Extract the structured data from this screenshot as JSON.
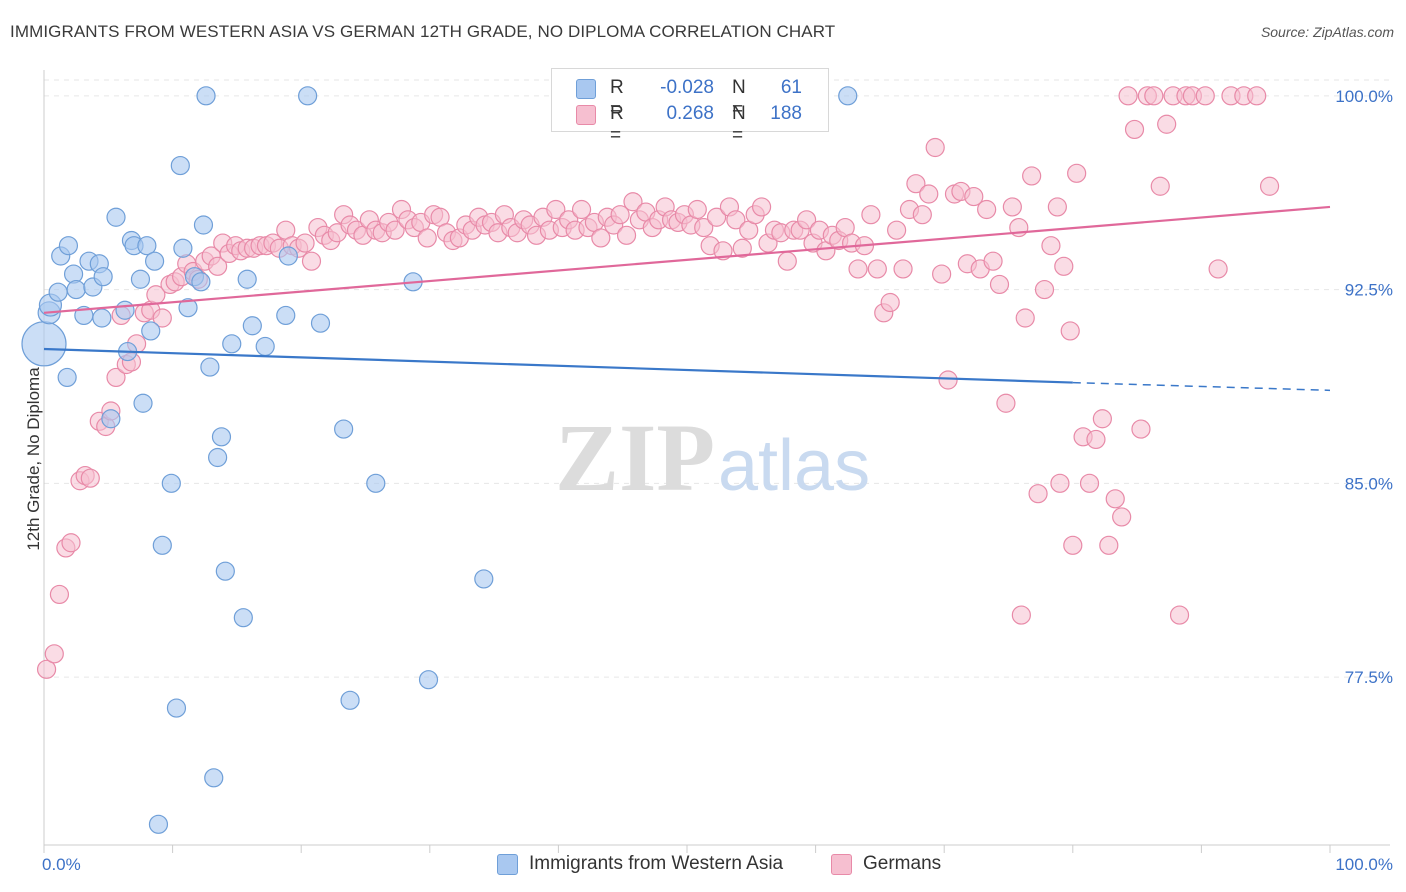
{
  "title": "IMMIGRANTS FROM WESTERN ASIA VS GERMAN 12TH GRADE, NO DIPLOMA CORRELATION CHART",
  "source": "Source: ZipAtlas.com",
  "watermark": {
    "zip": "ZIP",
    "atlas": "atlas"
  },
  "legend": {
    "rows": [
      {
        "r_label": "R =",
        "r_value": "-0.028",
        "n_label": "N =",
        "n_value": "61"
      },
      {
        "r_label": "R =",
        "r_value": "0.268",
        "n_label": "N =",
        "n_value": "188"
      }
    ]
  },
  "bottom_legend": [
    "Immigrants from Western Asia",
    "Germans"
  ],
  "colors": {
    "blue_fill": "#a9c8f0",
    "blue_stroke": "#6f9fd8",
    "blue_line": "#3a78c9",
    "pink_fill": "#f6bfd0",
    "pink_stroke": "#e88aa8",
    "pink_line": "#e0689a",
    "axis_text_blue": "#3d72c7",
    "grid": "#e6e6e6"
  },
  "chart_data": {
    "type": "scatter",
    "title": "IMMIGRANTS FROM WESTERN ASIA VS GERMAN 12TH GRADE, NO DIPLOMA CORRELATION CHART",
    "xlabel": "",
    "ylabel": "12th Grade, No Diploma",
    "xlim": [
      0,
      100
    ],
    "ylim": [
      71.0,
      101.0
    ],
    "x_ticks": [
      0,
      100
    ],
    "x_tick_labels": [
      "0.0%",
      "100.0%"
    ],
    "y_ticks": [
      77.5,
      85.0,
      92.5,
      100.0
    ],
    "y_tick_labels": [
      "77.5%",
      "85.0%",
      "92.5%",
      "100.0%"
    ],
    "grid": true,
    "legend_position": "top-center",
    "series": [
      {
        "name": "Immigrants from Western Asia",
        "color": "#a9c8f0",
        "r": -0.028,
        "n": 61,
        "trend": {
          "x": [
            0,
            80
          ],
          "y": [
            90.2,
            88.9
          ],
          "dashed_to": [
            100,
            88.6
          ]
        },
        "points": [
          [
            0.0,
            90.4
          ],
          [
            0.4,
            91.6
          ],
          [
            0.5,
            91.9
          ],
          [
            1.1,
            92.4
          ],
          [
            1.3,
            93.8
          ],
          [
            1.9,
            94.2
          ],
          [
            1.8,
            89.1
          ],
          [
            2.3,
            93.1
          ],
          [
            2.5,
            92.5
          ],
          [
            3.1,
            91.5
          ],
          [
            3.5,
            93.6
          ],
          [
            3.8,
            92.6
          ],
          [
            4.3,
            93.5
          ],
          [
            4.6,
            93.0
          ],
          [
            4.5,
            91.4
          ],
          [
            5.2,
            87.5
          ],
          [
            5.6,
            95.3
          ],
          [
            6.3,
            91.7
          ],
          [
            6.5,
            90.1
          ],
          [
            6.8,
            94.4
          ],
          [
            7.0,
            94.2
          ],
          [
            7.5,
            92.9
          ],
          [
            7.7,
            88.1
          ],
          [
            8.0,
            94.2
          ],
          [
            8.3,
            90.9
          ],
          [
            8.6,
            93.6
          ],
          [
            8.9,
            71.8
          ],
          [
            9.2,
            82.6
          ],
          [
            9.9,
            85.0
          ],
          [
            10.3,
            76.3
          ],
          [
            10.6,
            97.3
          ],
          [
            10.8,
            94.1
          ],
          [
            11.2,
            91.8
          ],
          [
            11.7,
            93.0
          ],
          [
            12.2,
            92.8
          ],
          [
            12.4,
            95.0
          ],
          [
            12.6,
            100.0
          ],
          [
            12.9,
            89.5
          ],
          [
            13.2,
            73.6
          ],
          [
            13.5,
            86.0
          ],
          [
            13.8,
            86.8
          ],
          [
            14.1,
            81.6
          ],
          [
            14.6,
            90.4
          ],
          [
            15.5,
            79.8
          ],
          [
            15.8,
            92.9
          ],
          [
            16.2,
            91.1
          ],
          [
            17.2,
            90.3
          ],
          [
            18.8,
            91.5
          ],
          [
            19.0,
            93.8
          ],
          [
            20.5,
            100.0
          ],
          [
            21.5,
            91.2
          ],
          [
            23.3,
            87.1
          ],
          [
            23.8,
            76.6
          ],
          [
            25.8,
            85.0
          ],
          [
            28.7,
            92.8
          ],
          [
            29.9,
            77.4
          ],
          [
            34.2,
            81.3
          ],
          [
            62.5,
            100.0
          ]
        ]
      },
      {
        "name": "Germans",
        "color": "#f6bfd0",
        "r": 0.268,
        "n": 188,
        "trend": {
          "x": [
            0,
            100
          ],
          "y": [
            91.6,
            95.7
          ]
        },
        "points": [
          [
            0.2,
            77.8
          ],
          [
            0.8,
            78.4
          ],
          [
            1.2,
            80.7
          ],
          [
            1.7,
            82.5
          ],
          [
            2.1,
            82.7
          ],
          [
            2.8,
            85.1
          ],
          [
            3.2,
            85.3
          ],
          [
            3.6,
            85.2
          ],
          [
            4.3,
            87.4
          ],
          [
            4.8,
            87.2
          ],
          [
            5.2,
            87.8
          ],
          [
            5.6,
            89.1
          ],
          [
            6.0,
            91.5
          ],
          [
            6.4,
            89.6
          ],
          [
            6.8,
            89.7
          ],
          [
            7.2,
            90.4
          ],
          [
            7.8,
            91.6
          ],
          [
            8.3,
            91.7
          ],
          [
            8.7,
            92.3
          ],
          [
            9.2,
            91.4
          ],
          [
            9.8,
            92.7
          ],
          [
            10.2,
            92.8
          ],
          [
            10.7,
            93.0
          ],
          [
            11.1,
            93.5
          ],
          [
            11.6,
            93.2
          ],
          [
            12.0,
            92.9
          ],
          [
            12.5,
            93.6
          ],
          [
            13.0,
            93.8
          ],
          [
            13.5,
            93.4
          ],
          [
            13.9,
            94.3
          ],
          [
            14.4,
            93.9
          ],
          [
            14.9,
            94.2
          ],
          [
            15.3,
            94.0
          ],
          [
            15.8,
            94.1
          ],
          [
            16.3,
            94.1
          ],
          [
            16.8,
            94.2
          ],
          [
            17.3,
            94.2
          ],
          [
            17.8,
            94.3
          ],
          [
            18.3,
            94.1
          ],
          [
            18.8,
            94.8
          ],
          [
            19.3,
            94.2
          ],
          [
            19.8,
            94.1
          ],
          [
            20.3,
            94.3
          ],
          [
            20.8,
            93.6
          ],
          [
            21.3,
            94.9
          ],
          [
            21.8,
            94.6
          ],
          [
            22.3,
            94.4
          ],
          [
            22.8,
            94.7
          ],
          [
            23.3,
            95.4
          ],
          [
            23.8,
            95.0
          ],
          [
            24.3,
            94.8
          ],
          [
            24.8,
            94.6
          ],
          [
            25.3,
            95.2
          ],
          [
            25.8,
            94.8
          ],
          [
            26.3,
            94.7
          ],
          [
            26.8,
            95.1
          ],
          [
            27.3,
            94.8
          ],
          [
            27.8,
            95.6
          ],
          [
            28.3,
            95.2
          ],
          [
            28.8,
            94.9
          ],
          [
            29.3,
            95.1
          ],
          [
            29.8,
            94.5
          ],
          [
            30.3,
            95.4
          ],
          [
            30.8,
            95.3
          ],
          [
            31.3,
            94.7
          ],
          [
            31.8,
            94.4
          ],
          [
            32.3,
            94.5
          ],
          [
            32.8,
            95.0
          ],
          [
            33.3,
            94.8
          ],
          [
            33.8,
            95.3
          ],
          [
            34.3,
            95.0
          ],
          [
            34.8,
            95.1
          ],
          [
            35.3,
            94.7
          ],
          [
            35.8,
            95.4
          ],
          [
            36.3,
            94.9
          ],
          [
            36.8,
            94.7
          ],
          [
            37.3,
            95.2
          ],
          [
            37.8,
            95.0
          ],
          [
            38.3,
            94.6
          ],
          [
            38.8,
            95.3
          ],
          [
            39.3,
            94.8
          ],
          [
            39.8,
            95.6
          ],
          [
            40.3,
            94.9
          ],
          [
            40.8,
            95.2
          ],
          [
            41.3,
            94.8
          ],
          [
            41.8,
            95.6
          ],
          [
            42.3,
            94.9
          ],
          [
            42.8,
            95.1
          ],
          [
            43.3,
            94.5
          ],
          [
            43.8,
            95.3
          ],
          [
            44.3,
            95.0
          ],
          [
            44.8,
            95.4
          ],
          [
            45.3,
            94.6
          ],
          [
            45.8,
            95.9
          ],
          [
            46.3,
            95.2
          ],
          [
            46.8,
            95.5
          ],
          [
            47.3,
            94.9
          ],
          [
            47.8,
            95.2
          ],
          [
            48.3,
            95.7
          ],
          [
            48.8,
            95.2
          ],
          [
            49.3,
            95.1
          ],
          [
            49.8,
            95.4
          ],
          [
            50.3,
            95.0
          ],
          [
            50.8,
            95.6
          ],
          [
            51.3,
            94.9
          ],
          [
            51.8,
            94.2
          ],
          [
            52.3,
            95.3
          ],
          [
            52.8,
            94.0
          ],
          [
            53.3,
            95.7
          ],
          [
            53.8,
            95.2
          ],
          [
            54.3,
            94.1
          ],
          [
            54.8,
            94.8
          ],
          [
            55.3,
            95.4
          ],
          [
            55.8,
            95.7
          ],
          [
            56.3,
            94.3
          ],
          [
            56.8,
            94.8
          ],
          [
            57.3,
            94.7
          ],
          [
            57.8,
            93.6
          ],
          [
            58.3,
            94.8
          ],
          [
            58.8,
            94.8
          ],
          [
            59.3,
            95.2
          ],
          [
            59.8,
            94.3
          ],
          [
            60.3,
            94.8
          ],
          [
            60.8,
            94.0
          ],
          [
            61.3,
            94.6
          ],
          [
            61.8,
            94.4
          ],
          [
            62.3,
            94.9
          ],
          [
            62.8,
            94.3
          ],
          [
            63.3,
            93.3
          ],
          [
            63.8,
            94.2
          ],
          [
            64.3,
            95.4
          ],
          [
            64.8,
            93.3
          ],
          [
            65.3,
            91.6
          ],
          [
            65.8,
            92.0
          ],
          [
            66.3,
            94.8
          ],
          [
            66.8,
            93.3
          ],
          [
            67.3,
            95.6
          ],
          [
            67.8,
            96.6
          ],
          [
            68.3,
            95.4
          ],
          [
            68.8,
            96.2
          ],
          [
            69.3,
            98.0
          ],
          [
            69.8,
            93.1
          ],
          [
            70.3,
            89.0
          ],
          [
            70.8,
            96.2
          ],
          [
            71.3,
            96.3
          ],
          [
            71.8,
            93.5
          ],
          [
            72.3,
            96.1
          ],
          [
            72.8,
            93.3
          ],
          [
            73.3,
            95.6
          ],
          [
            73.8,
            93.6
          ],
          [
            74.3,
            92.7
          ],
          [
            74.8,
            88.1
          ],
          [
            75.3,
            95.7
          ],
          [
            75.8,
            94.9
          ],
          [
            76.3,
            91.4
          ],
          [
            76.8,
            96.9
          ],
          [
            77.3,
            84.6
          ],
          [
            77.8,
            92.5
          ],
          [
            78.3,
            94.2
          ],
          [
            78.8,
            95.7
          ],
          [
            79.3,
            93.4
          ],
          [
            79.8,
            90.9
          ],
          [
            80.3,
            97.0
          ],
          [
            80.8,
            86.8
          ],
          [
            81.3,
            85.0
          ],
          [
            81.8,
            86.7
          ],
          [
            82.3,
            87.5
          ],
          [
            82.8,
            82.6
          ],
          [
            83.3,
            84.4
          ],
          [
            83.8,
            83.7
          ],
          [
            84.3,
            100.0
          ],
          [
            84.8,
            98.7
          ],
          [
            85.3,
            87.1
          ],
          [
            85.8,
            100.0
          ],
          [
            86.3,
            100.0
          ],
          [
            86.8,
            96.5
          ],
          [
            87.3,
            98.9
          ],
          [
            87.8,
            100.0
          ],
          [
            88.3,
            79.9
          ],
          [
            88.8,
            100.0
          ],
          [
            89.3,
            100.0
          ],
          [
            90.3,
            100.0
          ],
          [
            91.3,
            93.3
          ],
          [
            92.3,
            100.0
          ],
          [
            93.3,
            100.0
          ],
          [
            94.3,
            100.0
          ],
          [
            95.3,
            96.5
          ],
          [
            76.0,
            79.9
          ],
          [
            80.0,
            82.6
          ],
          [
            79.0,
            85.0
          ]
        ]
      }
    ]
  }
}
